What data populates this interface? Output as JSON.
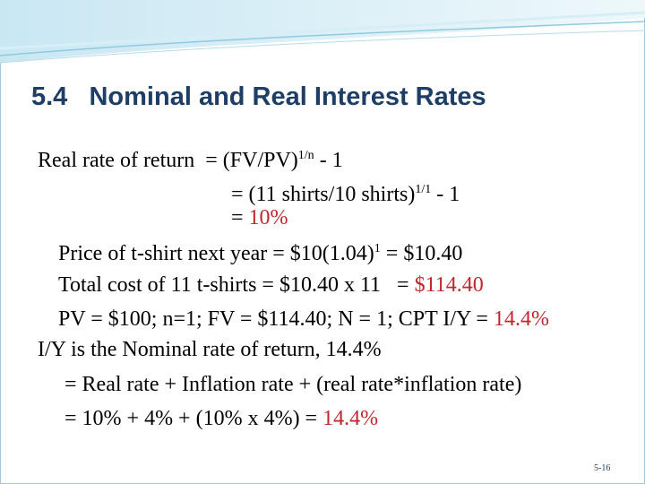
{
  "title": "5.4   Nominal and Real Interest Rates",
  "lines": [
    [
      "Real rate of return  = (FV/PV)",
      "1/n",
      " - 1"
    ],
    [
      "= (11 shirts/10 shirts)",
      "1/1",
      " - 1"
    ],
    [
      "= ",
      "10%"
    ],
    [
      "Price of t-shirt next year = $10(1.04)",
      "1",
      " = $10.40"
    ],
    [
      "Total cost of 11 t-shirts = $10.40 x 11   = ",
      "$114.40"
    ],
    [
      "PV = $100; n=1; FV = $114.40; N = 1; CPT I/Y = ",
      "14.4%"
    ],
    [
      "I/Y is the Nominal rate of return, 14.4%"
    ],
    [
      "= Real rate + Inflation rate + (real rate*inflation rate)"
    ],
    [
      "= 10% + 4% + (10% x 4%) = ",
      "14.4%"
    ]
  ],
  "footer": "5-16"
}
